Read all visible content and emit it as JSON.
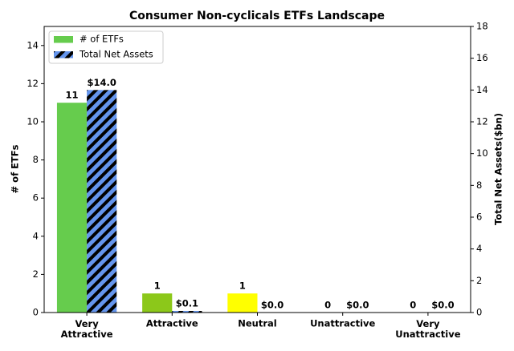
{
  "chart_data": {
    "type": "bar",
    "title": "Consumer Non-cyclicals ETFs Landscape",
    "y_label": "# of ETFs",
    "y2_label": "Total Net Assets($bn)",
    "categories": [
      "Very\nAttractive",
      "Attractive",
      "Neutral",
      "Unattractive",
      "Very\nUnattractive"
    ],
    "series": [
      {
        "name": "# of ETFs",
        "color": "#66cc4d",
        "colors": [
          "#66cc4d",
          "#8cc81a",
          "#ffff00",
          "#ff9900",
          "#ff0000"
        ],
        "values": [
          11,
          1,
          1,
          0,
          0
        ]
      },
      {
        "name": "Total Net Assets",
        "color": "#6495ed",
        "hatch": true,
        "axis": "y2",
        "values": [
          14.0,
          0.1,
          0.0,
          0.0,
          0.0
        ],
        "value_labels": [
          "$14.0",
          "$0.1",
          "$0.0",
          "$0.0",
          "$0.0"
        ]
      }
    ],
    "ylim": [
      0,
      15
    ],
    "yticks": [
      0,
      2,
      4,
      6,
      8,
      10,
      12,
      14
    ],
    "y2lim": [
      0,
      18
    ],
    "y2ticks": [
      0,
      2,
      4,
      6,
      8,
      10,
      12,
      14,
      16,
      18
    ],
    "legend": "upper left"
  }
}
